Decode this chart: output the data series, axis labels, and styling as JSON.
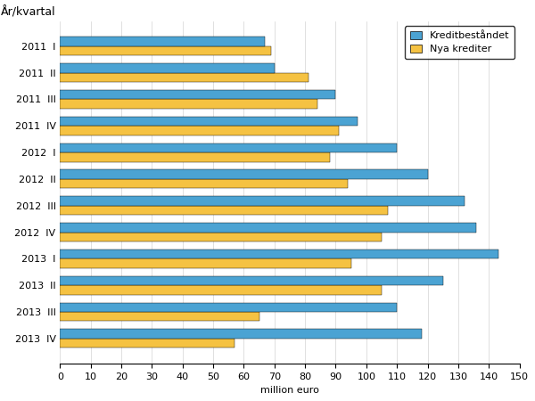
{
  "title": "År/kvartal",
  "xlabel": "million euro",
  "categories": [
    "2011  I",
    "2011  II",
    "2011  III",
    "2011  IV",
    "2012  I",
    "2012  II",
    "2012  III",
    "2012  IV",
    "2013  I",
    "2013  II",
    "2013  III",
    "2013  IV"
  ],
  "kreditbestandet": [
    67,
    70,
    90,
    97,
    110,
    120,
    132,
    136,
    143,
    125,
    110,
    118
  ],
  "nya_krediter": [
    69,
    81,
    84,
    91,
    88,
    94,
    107,
    105,
    95,
    105,
    65,
    57
  ],
  "color_blue": "#4BA3D3",
  "color_orange": "#F5C242",
  "xlim": [
    0,
    150
  ],
  "xticks": [
    0,
    10,
    20,
    30,
    40,
    50,
    60,
    70,
    80,
    90,
    100,
    110,
    120,
    130,
    140,
    150
  ],
  "legend_labels": [
    "Kreditbeståndet",
    "Nya krediter"
  ],
  "title_fontsize": 9,
  "tick_fontsize": 8,
  "label_fontsize": 8,
  "bar_height": 0.35
}
